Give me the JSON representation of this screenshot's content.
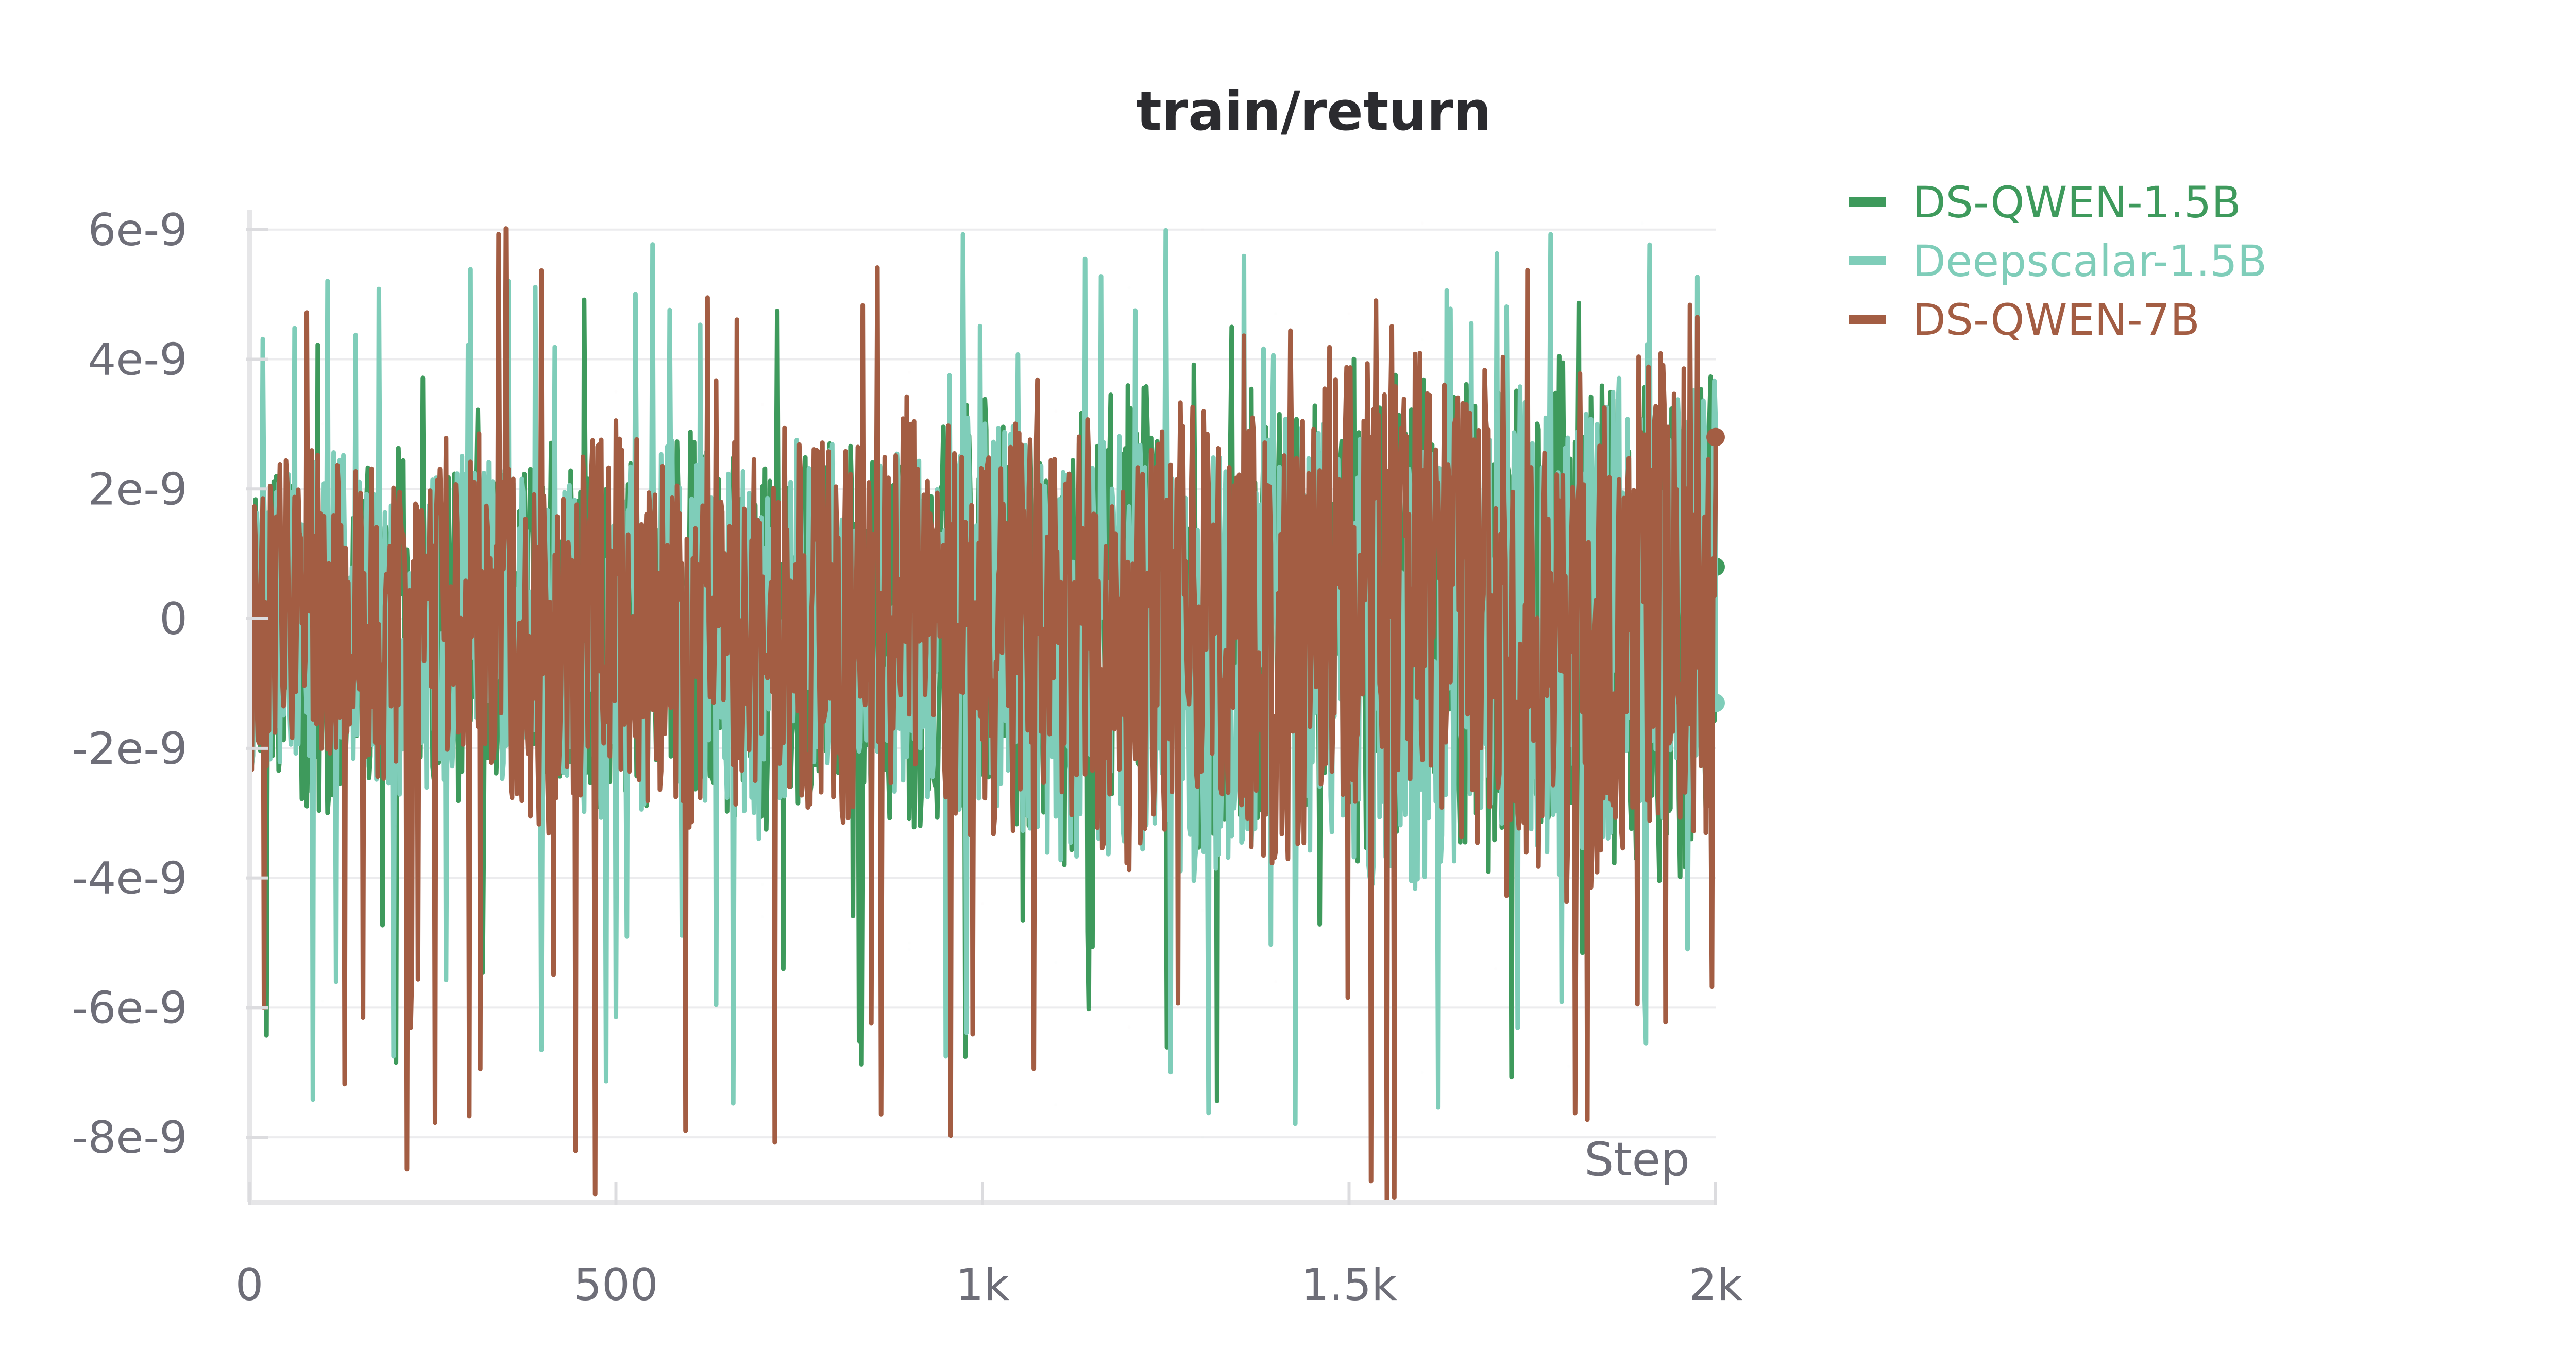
{
  "chart_data": {
    "type": "line",
    "title": "train/return",
    "xlabel": "Step",
    "ylabel": "",
    "xlim": [
      0,
      2000
    ],
    "ylim": [
      -9e-09,
      6.3e-09
    ],
    "x_ticks": [
      0,
      500,
      1000,
      1500,
      2000
    ],
    "x_tick_labels": [
      "0",
      "500",
      "1k",
      "1.5k",
      "2k"
    ],
    "y_ticks": [
      6e-09,
      4e-09,
      2e-09,
      0,
      -2e-09,
      -4e-09,
      -6e-09,
      -8e-09
    ],
    "y_tick_labels": [
      "6e-9",
      "4e-9",
      "2e-9",
      "0",
      "-2e-9",
      "-4e-9",
      "-6e-9",
      "-8e-9"
    ],
    "grid": true,
    "legend_position": "right",
    "series": [
      {
        "name": "DS-QWEN-1.5B",
        "color": "#3e9a5c",
        "x": [
          0,
          100,
          200,
          300,
          400,
          500,
          600,
          700,
          800,
          900,
          1000,
          1100,
          1200,
          1300,
          1400,
          1500,
          1600,
          1700,
          1800,
          1900,
          2000
        ],
        "y": [
          1.3e-09,
          -5.9e-09,
          2.7e-09,
          -3.2e-09,
          1.1e-09,
          -2.6e-09,
          1.4e-09,
          -4.1e-09,
          2.1e-09,
          -5e-09,
          3.9e-09,
          -7.5e-09,
          5.1e-09,
          -4.5e-09,
          4.7e-09,
          -5.2e-09,
          4.3e-09,
          -3.6e-09,
          3.8e-09,
          -4.8e-09,
          8e-10
        ],
        "range_min": -7.5e-09,
        "range_max": 5.1e-09
      },
      {
        "name": "Deepscalar-1.5B",
        "color": "#7fcdb9",
        "x": [
          0,
          100,
          200,
          300,
          400,
          500,
          600,
          700,
          800,
          900,
          1000,
          1100,
          1200,
          1300,
          1400,
          1500,
          1600,
          1700,
          1800,
          1900,
          2000
        ],
        "y": [
          -1.2e-09,
          2.1e-09,
          -2.8e-09,
          1.6e-09,
          -3.1e-09,
          -4.3e-09,
          1.2e-09,
          -4.6e-09,
          2.4e-09,
          -5.1e-09,
          1.5e-09,
          -5.3e-09,
          -3e-09,
          -8e-09,
          2.2e-09,
          -5.5e-09,
          -7e-09,
          3.2e-09,
          -6.9e-09,
          6.1e-09,
          -1.3e-09
        ],
        "range_min": -8e-09,
        "range_max": 6.1e-09
      },
      {
        "name": "DS-QWEN-7B",
        "color": "#a35d43",
        "x": [
          0,
          100,
          200,
          300,
          400,
          500,
          600,
          700,
          800,
          900,
          1000,
          1100,
          1200,
          1300,
          1400,
          1500,
          1600,
          1700,
          1800,
          1900,
          2000
        ],
        "y": [
          -1.2e-09,
          3e-09,
          -3.2e-09,
          4.3e-09,
          -6.6e-09,
          3.5e-09,
          -6.8e-09,
          3.3e-09,
          -2.4e-09,
          3.8e-09,
          -4.4e-09,
          3.2e-09,
          -6.3e-09,
          6e-09,
          -5.6e-09,
          4.7e-09,
          6.1e-09,
          -5.4e-09,
          -9e-09,
          3.9e-09,
          2.8e-09
        ],
        "range_min": -9e-09,
        "range_max": 6.1e-09
      }
    ]
  }
}
